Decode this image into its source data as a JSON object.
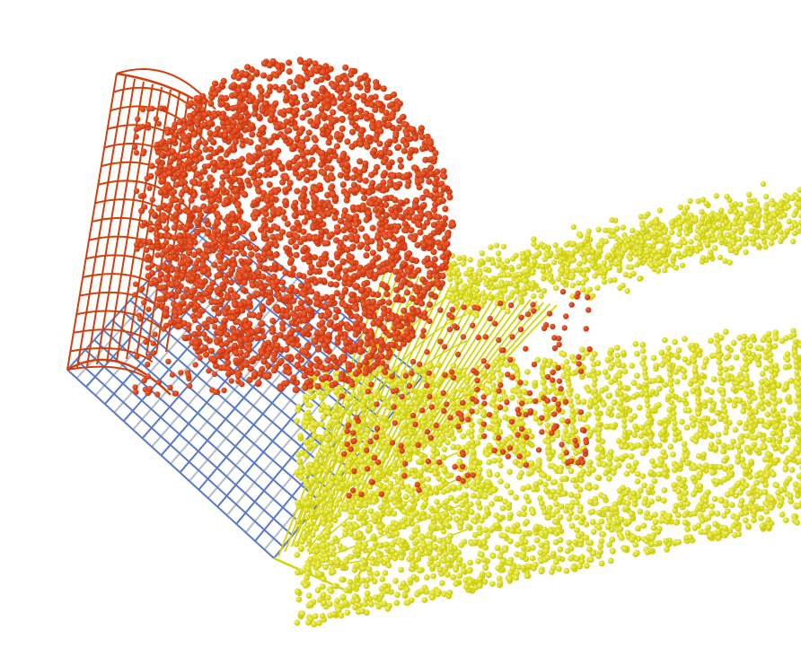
{
  "scene": {
    "background": "#ffffff",
    "colors": {
      "red_particles": "#c8300a",
      "red_highlight": "#f06a3a",
      "yellow_particles": "#c8c800",
      "yellow_highlight": "#f4f470",
      "grid_blue": "#5a7ac8",
      "grid_gray": "#b4bcc8",
      "mesh_red": "#d0400c",
      "mesh_yellow": "#d4d400"
    },
    "objects": [
      {
        "name": "red-particle-cloud",
        "label": ""
      },
      {
        "name": "yellow-particle-cloud",
        "label": ""
      },
      {
        "name": "blue-grid-floor",
        "label": ""
      },
      {
        "name": "red-wire-mesh",
        "label": ""
      },
      {
        "name": "yellow-wire-mesh",
        "label": ""
      }
    ]
  }
}
